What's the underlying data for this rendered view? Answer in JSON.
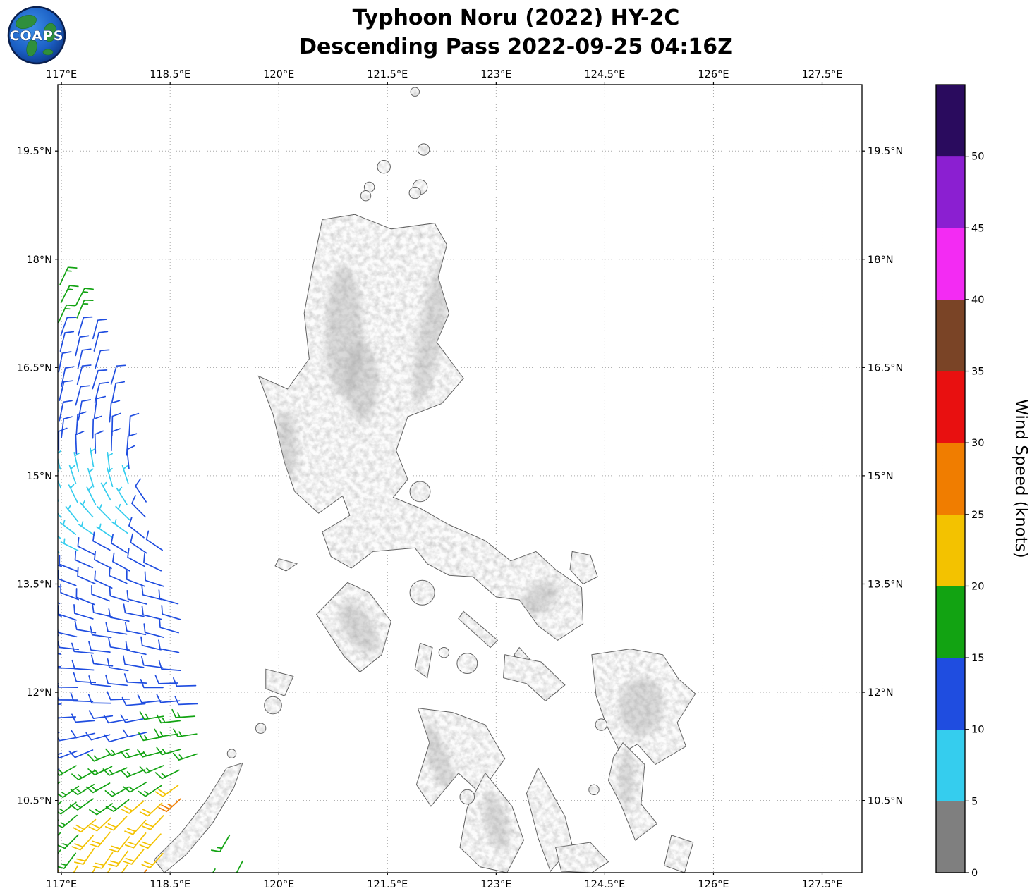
{
  "logo": {
    "text": "COAPS"
  },
  "title": {
    "line1": "Typhoon Noru (2022) HY-2C",
    "line2": "Descending Pass 2022-09-25 04:16Z"
  },
  "chart_data": {
    "type": "scatter",
    "subtype": "wind-barb-map",
    "title": "Typhoon Noru (2022) HY-2C",
    "subtitle": "Descending Pass 2022-09-25 04:16Z",
    "grid": true,
    "xlim": [
      116.95,
      128.05
    ],
    "ylim": [
      9.5,
      20.42
    ],
    "x_ticks": [
      117,
      118.5,
      120,
      121.5,
      123,
      124.5,
      126,
      127.5
    ],
    "x_tick_labels": [
      "117°E",
      "118.5°E",
      "120°E",
      "121.5°E",
      "123°E",
      "124.5°E",
      "126°E",
      "127.5°E"
    ],
    "y_ticks": [
      10.5,
      12,
      13.5,
      15,
      16.5,
      18,
      19.5
    ],
    "y_tick_labels": [
      "10.5°N",
      "12°N",
      "13.5°N",
      "15°N",
      "16.5°N",
      "18°N",
      "19.5°N"
    ],
    "colorbar": {
      "label": "Wind Speed (knots)",
      "tick_values": [
        0,
        5,
        10,
        15,
        20,
        25,
        30,
        35,
        40,
        45,
        50
      ],
      "segments": [
        {
          "from": 0,
          "to": 5,
          "color": "#7f7f7f"
        },
        {
          "from": 5,
          "to": 10,
          "color": "#35cdee"
        },
        {
          "from": 10,
          "to": 15,
          "color": "#1f4de0"
        },
        {
          "from": 15,
          "to": 20,
          "color": "#12a312"
        },
        {
          "from": 20,
          "to": 25,
          "color": "#f3c200"
        },
        {
          "from": 25,
          "to": 30,
          "color": "#f07d00"
        },
        {
          "from": 30,
          "to": 35,
          "color": "#e81010"
        },
        {
          "from": 35,
          "to": 40,
          "color": "#7a4426"
        },
        {
          "from": 40,
          "to": 45,
          "color": "#f32bf3"
        },
        {
          "from": 45,
          "to": 50,
          "color": "#8b1fd1"
        },
        {
          "from": 50,
          "to": 55,
          "color": "#2a0b5e"
        }
      ]
    },
    "wind_barbs": {
      "speed_units": "knots",
      "convention": "full_barb=10kt, half_barb=5kt, staff points toward direction wind is from",
      "lon0": 116.98,
      "dlon": 0.235,
      "rows_format": "[lat, n_barbs, dir_from_deg, speed_kt, [[lon_ge, speed_kt]...]]",
      "rows": [
        [
          17.62,
          1,
          25,
          17
        ],
        [
          17.39,
          2,
          23,
          17
        ],
        [
          17.16,
          2,
          21,
          17
        ],
        [
          16.93,
          3,
          19,
          12
        ],
        [
          16.7,
          3,
          17,
          12
        ],
        [
          16.47,
          3,
          15,
          12
        ],
        [
          16.24,
          4,
          13,
          12
        ],
        [
          16.01,
          4,
          11,
          12
        ],
        [
          15.78,
          4,
          8,
          12
        ],
        [
          15.55,
          5,
          5,
          12
        ],
        [
          15.32,
          5,
          2,
          12
        ],
        [
          15.09,
          5,
          350,
          7,
          [
            [
              117.9,
              12
            ]
          ]
        ],
        [
          14.86,
          5,
          340,
          7,
          [
            [
              118.0,
              12
            ]
          ]
        ],
        [
          14.63,
          6,
          330,
          7,
          [
            [
              118.0,
              12
            ]
          ]
        ],
        [
          14.4,
          6,
          318,
          7,
          [
            [
              118.05,
              12
            ]
          ]
        ],
        [
          14.17,
          6,
          308,
          7,
          [
            [
              117.95,
              12
            ]
          ]
        ],
        [
          13.94,
          7,
          300,
          7,
          [
            [
              117.45,
              12
            ]
          ]
        ],
        [
          13.71,
          7,
          295,
          12
        ],
        [
          13.48,
          7,
          291,
          12
        ],
        [
          13.25,
          8,
          288,
          12
        ],
        [
          13.02,
          8,
          285,
          12
        ],
        [
          12.79,
          8,
          282,
          12
        ],
        [
          12.56,
          8,
          279,
          12
        ],
        [
          12.33,
          8,
          276,
          12
        ],
        [
          12.1,
          9,
          272,
          12
        ],
        [
          11.87,
          9,
          268,
          12
        ],
        [
          11.64,
          9,
          263,
          12,
          [
            [
              118.4,
              17
            ]
          ]
        ],
        [
          11.41,
          9,
          258,
          12,
          [
            [
              118.3,
              17
            ]
          ]
        ],
        [
          11.18,
          9,
          251,
          12,
          [
            [
              117.6,
              17
            ]
          ]
        ],
        [
          10.95,
          8,
          244,
          12,
          [
            [
              117.2,
              17
            ]
          ]
        ],
        [
          10.72,
          8,
          237,
          17,
          [
            [
              118.55,
              22
            ]
          ]
        ],
        [
          10.49,
          8,
          231,
          17,
          [
            [
              118.1,
              22
            ],
            [
              118.5,
              27
            ]
          ]
        ],
        [
          10.26,
          7,
          226,
          17,
          [
            [
              117.3,
              22
            ]
          ]
        ],
        [
          10.03,
          7,
          222,
          17,
          [
            [
              117.25,
              22
            ]
          ]
        ],
        [
          9.8,
          7,
          218,
          17,
          [
            [
              117.2,
              22
            ]
          ]
        ],
        [
          9.57,
          6,
          214,
          22,
          [
            [
              118.1,
              27
            ]
          ]
        ]
      ],
      "extra_barbs_format": "[lon, lat, dir_from_deg, speed_kt]",
      "extra_barbs": [
        [
          119.32,
          10.02,
          210,
          17
        ],
        [
          119.5,
          9.66,
          207,
          17
        ],
        [
          119.12,
          9.55,
          211,
          17
        ]
      ]
    }
  }
}
